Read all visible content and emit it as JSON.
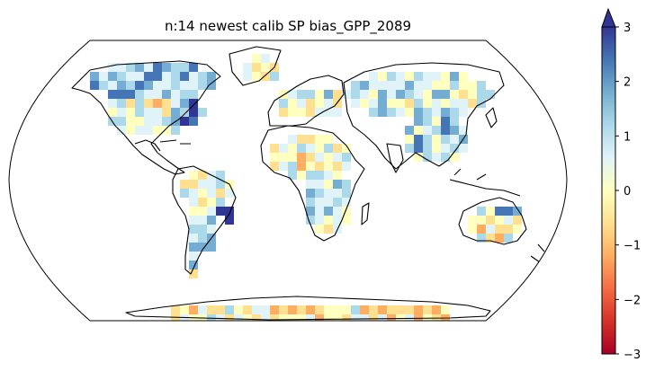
{
  "title": "n:14 newest calib SP  bias_GPP_2089",
  "colorbar": {
    "vmin": -3,
    "vmax": 3,
    "ticks": [
      {
        "value": 3,
        "label": "3"
      },
      {
        "value": 2,
        "label": "2"
      },
      {
        "value": 1,
        "label": "1"
      },
      {
        "value": 0,
        "label": "0"
      },
      {
        "value": -1,
        "label": "−1"
      },
      {
        "value": -2,
        "label": "−2"
      },
      {
        "value": -3,
        "label": "−3"
      }
    ],
    "extend": "max",
    "colors": [
      "#a50026",
      "#d73027",
      "#f46d43",
      "#fdae61",
      "#fee090",
      "#ffffbf",
      "#e0f3f8",
      "#abd9e9",
      "#74add1",
      "#4575b4",
      "#313695"
    ]
  },
  "map": {
    "projection": "robinson",
    "coastline_color": "#000000",
    "outline_color": "#000000"
  }
}
